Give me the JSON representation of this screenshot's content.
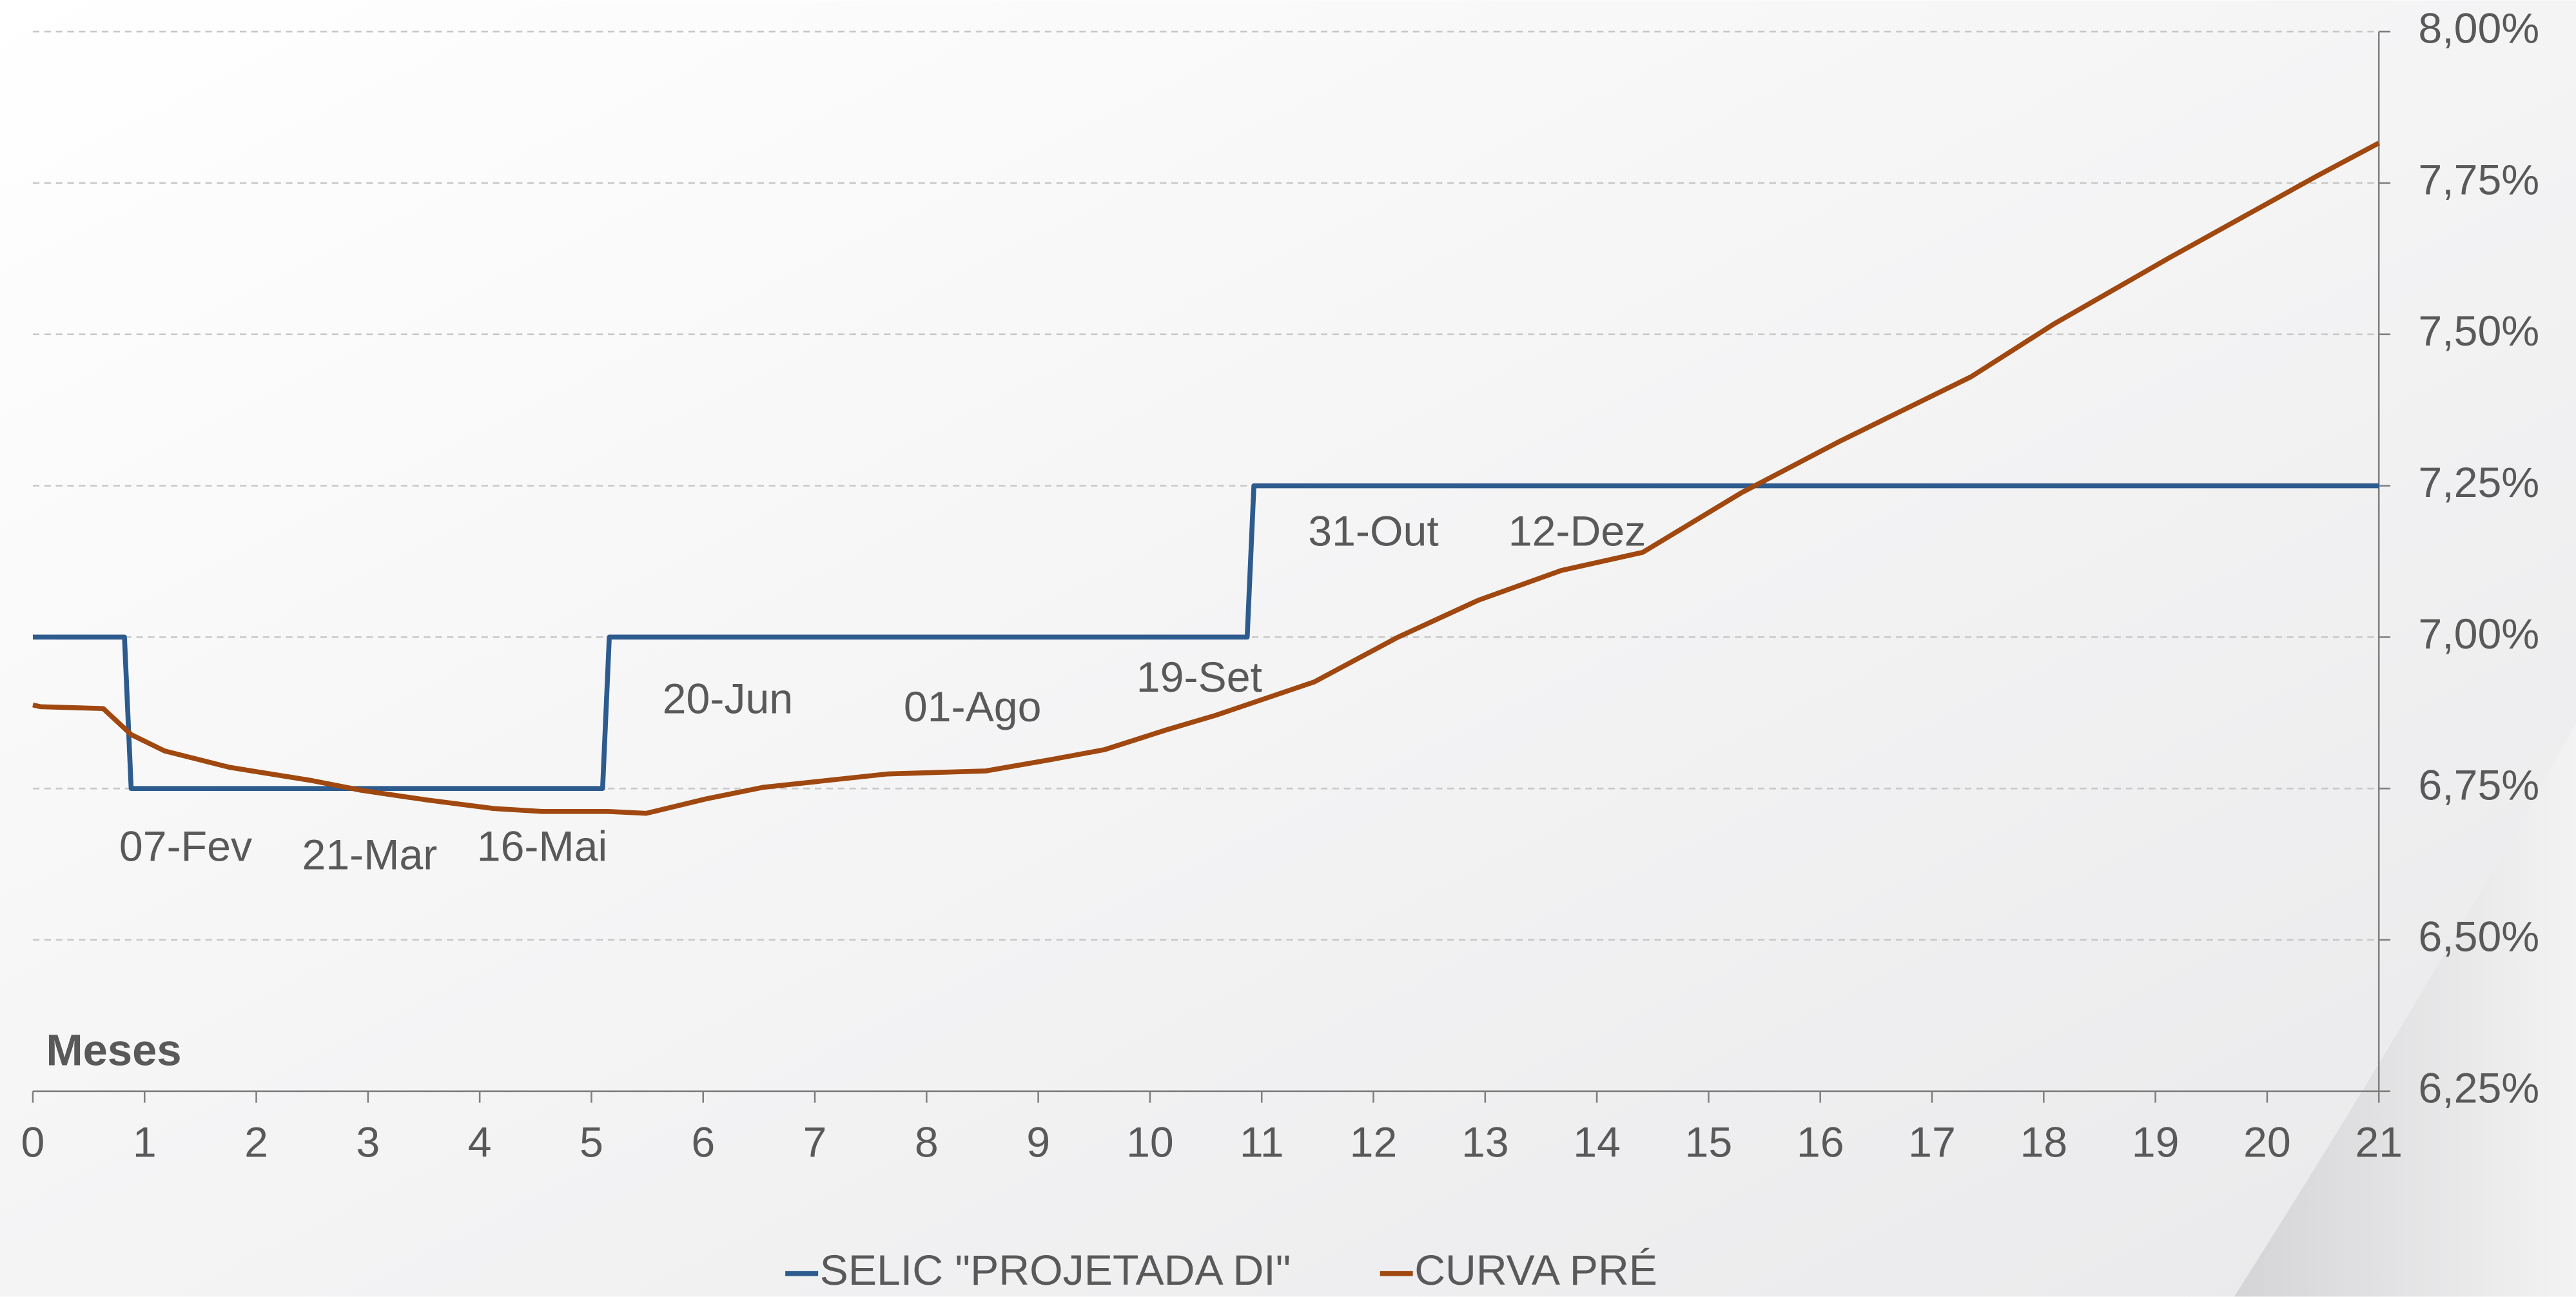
{
  "chart_data": {
    "type": "line",
    "xlabel": "Meses",
    "xlim": [
      0,
      21
    ],
    "xticks": [
      0,
      1,
      2,
      3,
      4,
      5,
      6,
      7,
      8,
      9,
      10,
      11,
      12,
      13,
      14,
      15,
      16,
      17,
      18,
      19,
      20,
      21
    ],
    "ylim": [
      6.25,
      8.0
    ],
    "yticks": [
      {
        "value": 6.25,
        "label": "6,25%"
      },
      {
        "value": 6.5,
        "label": "6,50%"
      },
      {
        "value": 6.75,
        "label": "6,75%"
      },
      {
        "value": 7.0,
        "label": "7,00%"
      },
      {
        "value": 7.25,
        "label": "7,25%"
      },
      {
        "value": 7.5,
        "label": "7,50%"
      },
      {
        "value": 7.75,
        "label": "7,75%"
      },
      {
        "value": 8.0,
        "label": "8,00%"
      }
    ],
    "grid": true,
    "legend": "bottom",
    "series": [
      {
        "name": "SELIC \"PROJETADA DI\"",
        "color": "#2e5b8e",
        "x": [
          0,
          0.82,
          0.88,
          5.1,
          5.16,
          10.87,
          10.93,
          21
        ],
        "values": [
          7.0,
          7.0,
          6.75,
          6.75,
          7.0,
          7.0,
          7.25,
          7.25
        ]
      },
      {
        "name": "CURVA PRÉ",
        "color": "#a0480f",
        "x": [
          0,
          0.07,
          0.63,
          0.88,
          1.18,
          1.76,
          2.5,
          2.94,
          3.53,
          4.12,
          4.56,
          5.15,
          5.49,
          6.03,
          6.54,
          7.65,
          8.53,
          9.12,
          9.59,
          10.15,
          10.59,
          11.47,
          12.21,
          12.94,
          13.68,
          14.41,
          15.29,
          16.18,
          17.35,
          18.09,
          19.12,
          20.44,
          21
        ],
        "values": [
          6.888,
          6.885,
          6.882,
          6.839,
          6.812,
          6.785,
          6.763,
          6.747,
          6.731,
          6.717,
          6.712,
          6.712,
          6.709,
          6.733,
          6.752,
          6.774,
          6.779,
          6.798,
          6.814,
          6.847,
          6.871,
          6.926,
          6.999,
          7.061,
          7.11,
          7.14,
          7.238,
          7.324,
          7.43,
          7.517,
          7.626,
          7.761,
          7.816
        ]
      }
    ],
    "annotations": [
      "07-Fev",
      "21-Mar",
      "16-Mai",
      "20-Jun",
      "01-Ago",
      "19-Set",
      "31-Out",
      "12-Dez"
    ]
  }
}
